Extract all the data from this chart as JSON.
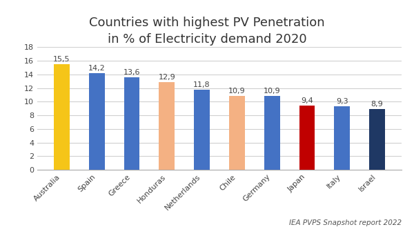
{
  "title": "Countries with highest PV Penetration\nin % of Electricity demand 2020",
  "categories": [
    "Australia",
    "Spain",
    "Greece",
    "Honduras",
    "Netherlands",
    "Chile",
    "Germany",
    "Japan",
    "Italy",
    "Israel"
  ],
  "values": [
    15.5,
    14.2,
    13.6,
    12.9,
    11.8,
    10.9,
    10.9,
    9.4,
    9.3,
    8.9
  ],
  "labels": [
    "15,5",
    "14,2",
    "13,6",
    "12,9",
    "11,8",
    "10,9",
    "10,9",
    "9,4",
    "9,3",
    "8,9"
  ],
  "bar_colors": [
    "#F5C518",
    "#4472C4",
    "#4472C4",
    "#F4B183",
    "#4472C4",
    "#F4B183",
    "#4472C4",
    "#C00000",
    "#4472C4",
    "#1F3864"
  ],
  "ylim": [
    0,
    18
  ],
  "yticks": [
    0,
    2,
    4,
    6,
    8,
    10,
    12,
    14,
    16,
    18
  ],
  "background_color": "#FFFFFF",
  "grid_color": "#D0D0D0",
  "source_text": "IEA PVPS Snapshot report 2022",
  "title_fontsize": 13,
  "label_fontsize": 8,
  "tick_fontsize": 8,
  "source_fontsize": 7.5,
  "bar_width": 0.45
}
